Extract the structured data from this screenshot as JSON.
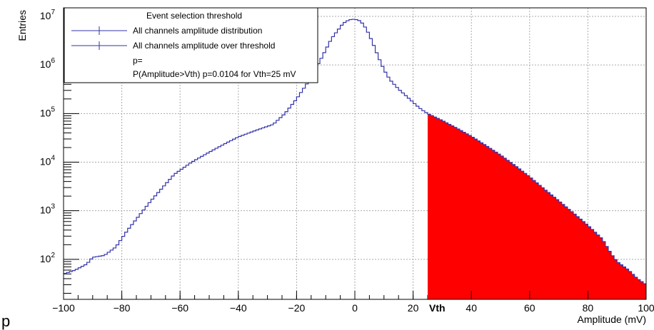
{
  "chart_data": {
    "type": "histogram",
    "title": "",
    "xlabel": "Amplitude (mV)",
    "ylabel": "Entries",
    "xlim": [
      -100,
      100
    ],
    "ylim": [
      15,
      15000000
    ],
    "yscale": "log",
    "grid": true,
    "x_ticks": [
      -100,
      -80,
      -60,
      -40,
      -20,
      0,
      20,
      40,
      60,
      80,
      100
    ],
    "y_ticks": [
      {
        "base": "10",
        "exp": "2",
        "value": 100
      },
      {
        "base": "10",
        "exp": "3",
        "value": 1000
      },
      {
        "base": "10",
        "exp": "4",
        "value": 10000
      },
      {
        "base": "10",
        "exp": "5",
        "value": 100000
      },
      {
        "base": "10",
        "exp": "6",
        "value": 1000000
      },
      {
        "base": "10",
        "exp": "7",
        "value": 10000000
      }
    ],
    "threshold": {
      "label": "Vth",
      "value": 25
    },
    "series": [
      {
        "name": "All channels amplitude distribution",
        "color": "#3333aa",
        "points": [
          [
            -100,
            50
          ],
          [
            -96,
            60
          ],
          [
            -92,
            80
          ],
          [
            -90,
            110
          ],
          [
            -86,
            120
          ],
          [
            -82,
            180
          ],
          [
            -78,
            400
          ],
          [
            -74,
            800
          ],
          [
            -70,
            1600
          ],
          [
            -66,
            3000
          ],
          [
            -62,
            5600
          ],
          [
            -56,
            10000
          ],
          [
            -50,
            16000
          ],
          [
            -44,
            25000
          ],
          [
            -40,
            33000
          ],
          [
            -34,
            45000
          ],
          [
            -28,
            60000
          ],
          [
            -24,
            100000
          ],
          [
            -20,
            200000
          ],
          [
            -16,
            450000
          ],
          [
            -12,
            1200000
          ],
          [
            -8,
            3500000
          ],
          [
            -4,
            7200000
          ],
          [
            -2,
            8500000
          ],
          [
            0,
            8800000
          ],
          [
            2,
            8000000
          ],
          [
            4,
            5500000
          ],
          [
            6,
            3000000
          ],
          [
            8,
            1500000
          ],
          [
            10,
            800000
          ],
          [
            12,
            500000
          ],
          [
            15,
            320000
          ],
          [
            18,
            220000
          ],
          [
            21,
            150000
          ],
          [
            23,
            120000
          ],
          [
            25,
            100000
          ],
          [
            30,
            72000
          ],
          [
            35,
            50000
          ],
          [
            40,
            34000
          ],
          [
            45,
            22000
          ],
          [
            50,
            14000
          ],
          [
            55,
            8500
          ],
          [
            60,
            5000
          ],
          [
            65,
            2800
          ],
          [
            70,
            1600
          ],
          [
            75,
            900
          ],
          [
            80,
            500
          ],
          [
            85,
            260
          ],
          [
            88,
            130
          ],
          [
            90,
            90
          ],
          [
            94,
            60
          ],
          [
            97,
            40
          ],
          [
            100,
            30
          ]
        ]
      },
      {
        "name": "All channels amplitude over threshold",
        "color": "#ff0000",
        "from": 25
      }
    ],
    "legend": {
      "position": "top-left",
      "header": "Event selection threshold",
      "extra_lines": [
        "p=",
        "P(Amplitude>Vth) p=0.0104 for Vth=25 mV"
      ]
    }
  },
  "stray_text": "p"
}
